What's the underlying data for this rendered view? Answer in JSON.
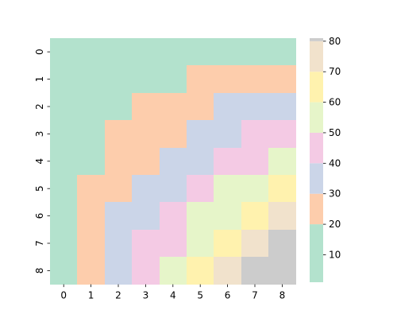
{
  "chart_data": {
    "type": "heatmap",
    "x_tick_labels": [
      "0",
      "1",
      "2",
      "3",
      "4",
      "5",
      "6",
      "7",
      "8"
    ],
    "y_tick_labels": [
      "0",
      "1",
      "2",
      "3",
      "4",
      "5",
      "6",
      "7",
      "8"
    ],
    "matrix": [
      [
        0,
        0,
        0,
        0,
        0,
        0,
        0,
        0,
        0
      ],
      [
        0,
        0,
        0,
        0,
        0,
        1,
        1,
        1,
        1
      ],
      [
        0,
        0,
        0,
        1,
        1,
        1,
        2,
        2,
        2
      ],
      [
        0,
        0,
        1,
        1,
        1,
        2,
        2,
        3,
        3
      ],
      [
        0,
        0,
        1,
        1,
        2,
        2,
        3,
        3,
        4
      ],
      [
        0,
        1,
        1,
        2,
        2,
        3,
        4,
        4,
        5
      ],
      [
        0,
        1,
        2,
        2,
        3,
        4,
        4,
        5,
        6
      ],
      [
        0,
        1,
        2,
        3,
        3,
        4,
        5,
        6,
        7
      ],
      [
        0,
        1,
        2,
        3,
        4,
        5,
        6,
        7,
        7
      ]
    ],
    "bins": [
      {
        "min": 1,
        "max": 20,
        "color": "#b3e2cd"
      },
      {
        "min": 20,
        "max": 30,
        "color": "#fdcdac"
      },
      {
        "min": 30,
        "max": 40,
        "color": "#cbd5e8"
      },
      {
        "min": 40,
        "max": 50,
        "color": "#f4cae4"
      },
      {
        "min": 50,
        "max": 60,
        "color": "#e6f5c9"
      },
      {
        "min": 60,
        "max": 70,
        "color": "#fff2ae"
      },
      {
        "min": 70,
        "max": 80,
        "color": "#f1e2cc"
      },
      {
        "min": 80,
        "max": 81,
        "color": "#cccccc"
      }
    ],
    "colorbar": {
      "range": [
        1,
        81
      ],
      "tick_labels": [
        "10",
        "20",
        "30",
        "40",
        "50",
        "60",
        "70",
        "80"
      ],
      "tick_values": [
        10,
        20,
        30,
        40,
        50,
        60,
        70,
        80
      ]
    },
    "grid": false,
    "legend": "colorbar-right"
  }
}
